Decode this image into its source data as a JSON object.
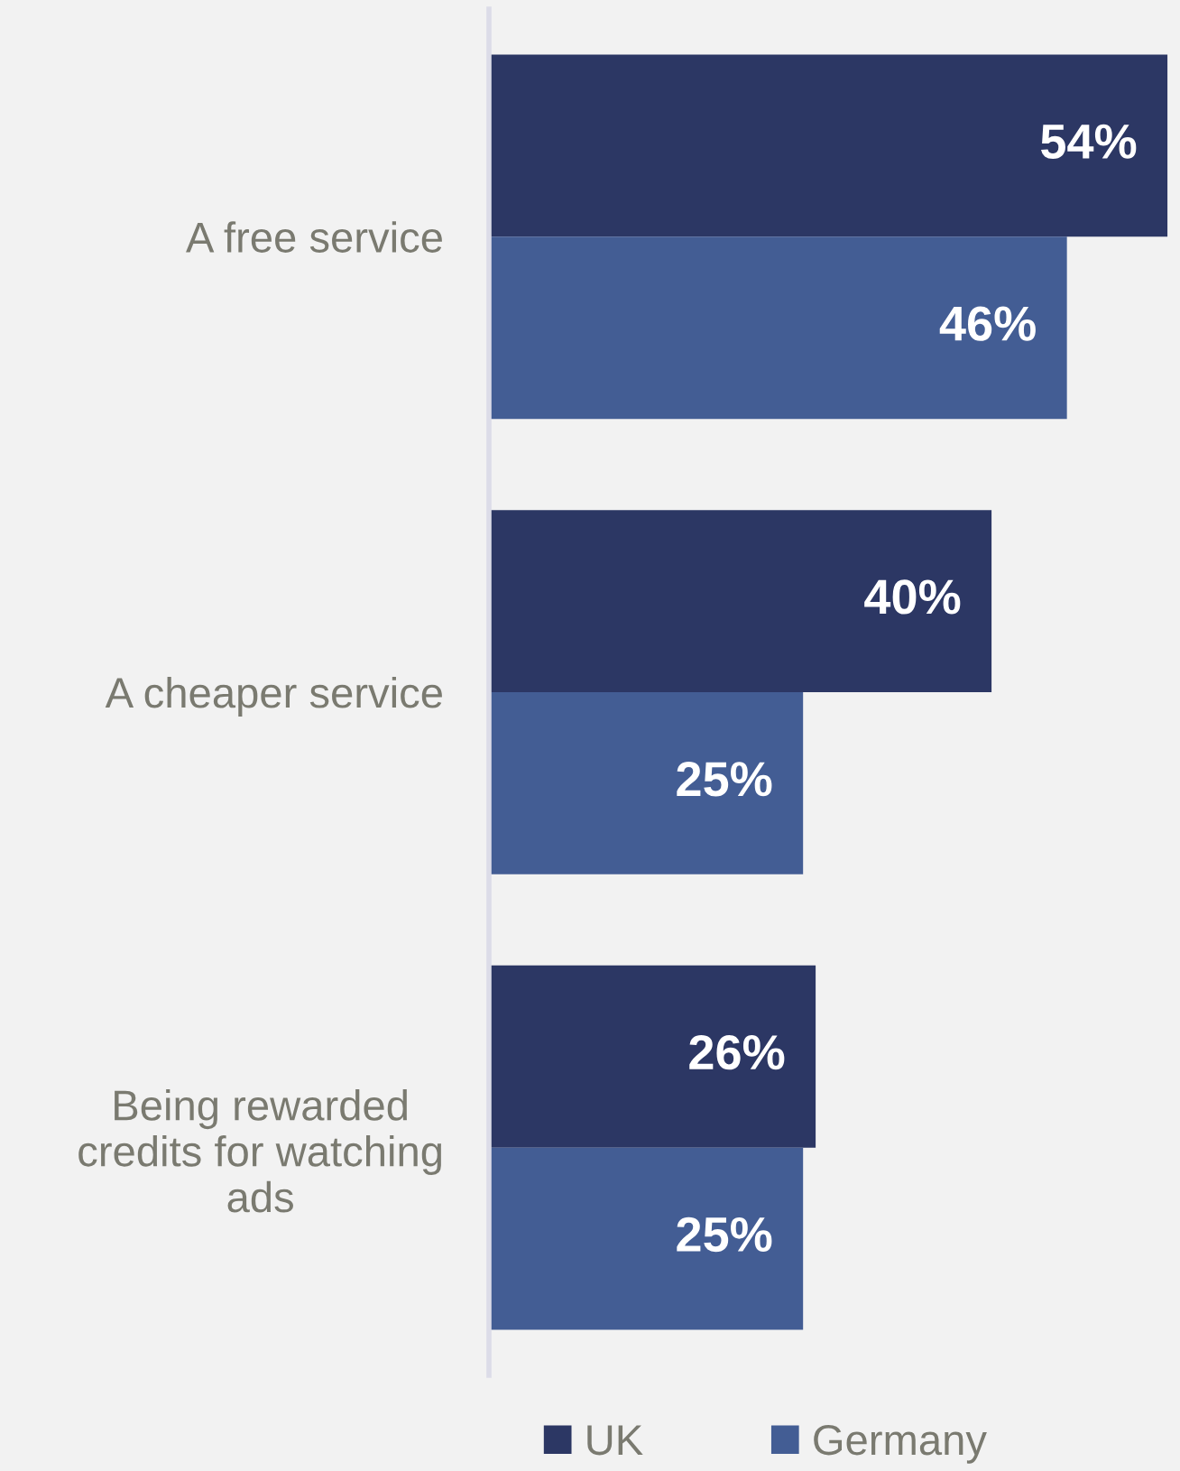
{
  "chart_data": {
    "type": "bar",
    "orientation": "horizontal",
    "categories": [
      "A free service",
      "A cheaper service",
      "Being rewarded\ncredits for watching\nads"
    ],
    "series": [
      {
        "name": "UK",
        "color": "#2c3764",
        "values": [
          54,
          40,
          26
        ],
        "value_labels": [
          "54%",
          "40%",
          "26%"
        ]
      },
      {
        "name": "Germany",
        "color": "#435d94",
        "values": [
          46,
          25,
          25
        ],
        "value_labels": [
          "46%",
          "25%",
          "25%"
        ]
      }
    ],
    "xlim": [
      0,
      55
    ],
    "tick_labels": "y",
    "grid": false,
    "legend": "bottom"
  }
}
